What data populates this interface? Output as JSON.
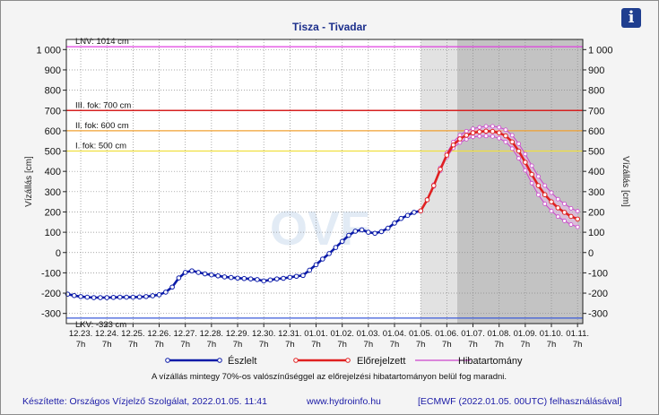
{
  "chart_data": {
    "type": "line",
    "title": "Tisza - Tivadar",
    "ylabel_left": "Vízállás [cm]",
    "ylabel_right": "Vízállás [cm]",
    "ylim": [
      -350,
      1050
    ],
    "yticks": [
      -300,
      -200,
      -100,
      0,
      100,
      200,
      300,
      400,
      500,
      600,
      700,
      800,
      900,
      1000
    ],
    "ytick_labels": [
      "-300",
      "-200",
      "-100",
      "0",
      "100",
      "200",
      "300",
      "400",
      "500",
      "600",
      "700",
      "800",
      "900",
      "1 000"
    ],
    "grid": true,
    "x_unit": "days since 12.23. 7h",
    "xlim": [
      -0.55,
      19.2
    ],
    "x_ticks": [
      {
        "date": "12.23.",
        "time": "7h"
      },
      {
        "date": "12.24.",
        "time": "7h"
      },
      {
        "date": "12.25.",
        "time": "7h"
      },
      {
        "date": "12.26.",
        "time": "7h"
      },
      {
        "date": "12.27.",
        "time": "7h"
      },
      {
        "date": "12.28.",
        "time": "7h"
      },
      {
        "date": "12.29.",
        "time": "7h"
      },
      {
        "date": "12.30.",
        "time": "7h"
      },
      {
        "date": "12.31.",
        "time": "7h"
      },
      {
        "date": "01.01.",
        "time": "7h"
      },
      {
        "date": "01.02.",
        "time": "7h"
      },
      {
        "date": "01.03.",
        "time": "7h"
      },
      {
        "date": "01.04.",
        "time": "7h"
      },
      {
        "date": "01.05.",
        "time": "7h"
      },
      {
        "date": "01.06.",
        "time": "7h"
      },
      {
        "date": "01.07.",
        "time": "7h"
      },
      {
        "date": "01.08.",
        "time": "7h"
      },
      {
        "date": "01.09.",
        "time": "7h"
      },
      {
        "date": "01.10.",
        "time": "7h"
      },
      {
        "date": "01.11.",
        "time": "7h"
      }
    ],
    "shaded_regions": [
      {
        "x0": 13.0,
        "x1": 14.4,
        "color": "#e2e2e2"
      },
      {
        "x0": 14.4,
        "x1": 19.2,
        "color": "#c3c3c3"
      }
    ],
    "reference_lines": [
      {
        "label": "LNV: 1014 cm",
        "value": 1014,
        "color": "#e040e0"
      },
      {
        "label": "III. fok: 700 cm",
        "value": 700,
        "color": "#d62020"
      },
      {
        "label": "II. fok: 600 cm",
        "value": 600,
        "color": "#f0a030"
      },
      {
        "label": "I. fok: 500 cm",
        "value": 500,
        "color": "#f0e040"
      },
      {
        "label": "LKV: -323 cm",
        "value": -323,
        "color": "#3a5ad8"
      }
    ],
    "series": [
      {
        "name": "Észlelt",
        "color": "#0a1aa8",
        "x": [
          -0.5,
          -0.25,
          0,
          0.25,
          0.5,
          0.75,
          1,
          1.25,
          1.5,
          1.75,
          2,
          2.25,
          2.5,
          2.75,
          3,
          3.25,
          3.5,
          3.75,
          4,
          4.25,
          4.5,
          4.75,
          5,
          5.25,
          5.5,
          5.75,
          6,
          6.25,
          6.5,
          6.75,
          7,
          7.25,
          7.5,
          7.75,
          8,
          8.25,
          8.5,
          8.75,
          9,
          9.25,
          9.5,
          9.75,
          10,
          10.25,
          10.5,
          10.75,
          11,
          11.25,
          11.5,
          11.75,
          12,
          12.25,
          12.5,
          12.75,
          13
        ],
        "y": [
          -205,
          -212,
          -217,
          -220,
          -222,
          -222,
          -222,
          -221,
          -220,
          -220,
          -220,
          -219,
          -217,
          -213,
          -208,
          -195,
          -170,
          -125,
          -98,
          -90,
          -98,
          -105,
          -110,
          -115,
          -120,
          -123,
          -126,
          -128,
          -130,
          -133,
          -140,
          -135,
          -130,
          -127,
          -122,
          -117,
          -113,
          -87,
          -60,
          -32,
          -5,
          25,
          55,
          85,
          105,
          112,
          100,
          95,
          103,
          120,
          145,
          168,
          183,
          198,
          205
        ]
      },
      {
        "name": "Előrejelzett",
        "color": "#e02020",
        "x": [
          13,
          13.25,
          13.5,
          13.75,
          14,
          14.25,
          14.5,
          14.75,
          15,
          15.25,
          15.5,
          15.75,
          16,
          16.25,
          16.5,
          16.75,
          17,
          17.25,
          17.5,
          17.75,
          18,
          18.25,
          18.5,
          18.75,
          19
        ],
        "y": [
          205,
          260,
          330,
          410,
          480,
          530,
          560,
          578,
          590,
          595,
          598,
          597,
          590,
          575,
          545,
          500,
          445,
          385,
          330,
          285,
          250,
          220,
          198,
          178,
          165
        ]
      },
      {
        "name": "Hibatartomány",
        "color": "#cc44cc",
        "x": [
          13,
          13.25,
          13.5,
          13.75,
          14,
          14.25,
          14.5,
          14.75,
          15,
          15.25,
          15.5,
          15.75,
          16,
          16.25,
          16.5,
          16.75,
          17,
          17.25,
          17.5,
          17.75,
          18,
          18.25,
          18.5,
          18.75,
          19
        ],
        "upper": [
          205,
          262,
          335,
          418,
          490,
          545,
          578,
          598,
          610,
          617,
          622,
          622,
          617,
          605,
          578,
          536,
          485,
          428,
          375,
          330,
          295,
          263,
          240,
          218,
          204
        ],
        "lower": [
          205,
          258,
          325,
          402,
          470,
          515,
          542,
          558,
          570,
          573,
          574,
          572,
          563,
          545,
          512,
          464,
          405,
          342,
          285,
          240,
          205,
          177,
          156,
          138,
          126
        ]
      }
    ],
    "legend": [
      "Észlelt",
      "Előrejelzett",
      "Hibatartomány"
    ],
    "legend_position": "bottom",
    "note": "A vízállás mintegy 70%-os valószínűséggel az előrejelzési hibatartományon belül fog maradni."
  },
  "footer": {
    "author": "Készítette: Országos Vízjelző Szolgálat, 2022.01.05. 11:41",
    "website": "www.hydroinfo.hu",
    "source": "[ECMWF (2022.01.05. 00UTC) felhasználásával]"
  },
  "info_button": {
    "icon": "info-icon",
    "label": "i"
  }
}
